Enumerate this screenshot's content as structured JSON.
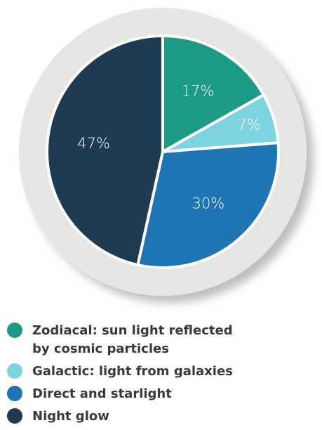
{
  "chart_data": {
    "type": "pie",
    "categories": [
      "Zodiacal: sun light reflected by cosmic particles",
      "Galactic: light from galaxies",
      "Direct and starlight",
      "Night glow"
    ],
    "values": [
      17,
      7,
      30,
      47
    ],
    "value_labels": [
      "17%",
      "7%",
      "30%",
      "47%"
    ],
    "colors": [
      "#1c9a85",
      "#7dd3df",
      "#1f75b3",
      "#1f3b52"
    ]
  }
}
